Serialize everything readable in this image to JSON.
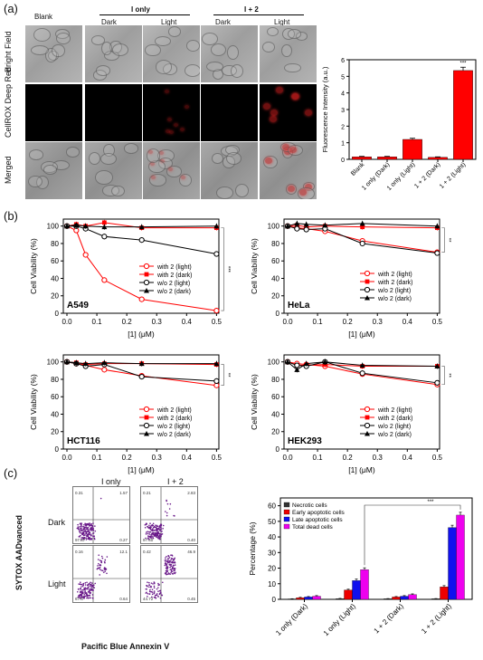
{
  "panel_labels": {
    "a": "(a)",
    "b": "(b)",
    "c": "(c)"
  },
  "panel_a": {
    "columns": {
      "blank": "Blank",
      "i_only": "I only",
      "i_plus_2": "I + 2",
      "dark": "Dark",
      "light": "Light"
    },
    "rows": [
      "Bright Field",
      "CellROX Deep Red",
      "Merged"
    ]
  },
  "panel_c_flow": {
    "columns": [
      "I only",
      "I + 2"
    ],
    "rows": [
      "Dark",
      "Light"
    ],
    "ylabel": "SYTOX AADvanced",
    "xlabel": "Pacific Blue Annexin V",
    "quadrants": [
      [
        "0.31",
        "1.57",
        "97.87",
        "0.27"
      ],
      [
        "0.21",
        "2.83",
        "97.40",
        "0.40"
      ],
      [
        "0.16",
        "12.1",
        "67.5",
        "0.64"
      ],
      [
        "0.42",
        "46.9",
        "44.72",
        "0.45"
      ]
    ]
  },
  "chart_data": [
    {
      "id": "fluorescence",
      "type": "bar",
      "categories": [
        "Blank",
        "1 only (Dark)",
        "1 only (Light)",
        "1 + 2 (Dark)",
        "1 + 2 (Light)"
      ],
      "values": [
        0.15,
        0.15,
        1.2,
        0.12,
        5.35
      ],
      "errors": [
        0.03,
        0.03,
        0.07,
        0.03,
        0.2
      ],
      "ylabel": "Fluorescence Intensity (a.u.)",
      "ylim": [
        0,
        6
      ],
      "yticks": [
        "0",
        "1",
        "2",
        "3",
        "4",
        "5",
        "6"
      ],
      "annotation": "***",
      "color": "#ff0000"
    },
    {
      "id": "A549",
      "type": "line",
      "cell_label": "A549",
      "x": [
        0,
        0.03125,
        0.0625,
        0.125,
        0.25,
        0.5
      ],
      "series": [
        {
          "name": "with 2 (light)",
          "values": [
            100,
            95,
            67,
            38,
            16,
            3
          ],
          "color": "#ff0000",
          "marker": "open-circle"
        },
        {
          "name": "with 2 (dark)",
          "values": [
            100,
            102,
            100,
            104,
            98,
            98
          ],
          "color": "#ff0000",
          "marker": "filled-square"
        },
        {
          "name": "w/o 2 (light)",
          "values": [
            100,
            100,
            97,
            88,
            84,
            68
          ],
          "color": "#000000",
          "marker": "open-circle"
        },
        {
          "name": "w/o 2 (dark)",
          "values": [
            100,
            101,
            100,
            99,
            99,
            100
          ],
          "color": "#000000",
          "marker": "filled-triangle"
        }
      ],
      "xlabel": "[1] (μM)",
      "ylabel": "Cell Viability (%)",
      "xticks": [
        "0.0",
        "0.1",
        "0.2",
        "0.3",
        "0.4",
        "0.5"
      ],
      "yticks": [
        "0",
        "20",
        "40",
        "60",
        "80",
        "100"
      ],
      "annotation": "***"
    },
    {
      "id": "HeLa",
      "type": "line",
      "cell_label": "HeLa",
      "x": [
        0,
        0.03125,
        0.0625,
        0.125,
        0.25,
        0.5
      ],
      "series": [
        {
          "name": "with 2 (light)",
          "values": [
            100,
            98,
            97,
            94,
            83,
            70
          ],
          "color": "#ff0000",
          "marker": "open-circle"
        },
        {
          "name": "with 2 (dark)",
          "values": [
            100,
            101,
            99,
            100,
            99,
            98
          ],
          "color": "#ff0000",
          "marker": "filled-square"
        },
        {
          "name": "w/o 2 (light)",
          "values": [
            100,
            97,
            96,
            97,
            80,
            69
          ],
          "color": "#000000",
          "marker": "open-circle"
        },
        {
          "name": "w/o 2 (dark)",
          "values": [
            100,
            103,
            102,
            101,
            103,
            100
          ],
          "color": "#000000",
          "marker": "filled-triangle"
        }
      ],
      "xlabel": "[1] (μM)",
      "ylabel": "Cell Viability (%)",
      "xticks": [
        "0.0",
        "0.1",
        "0.2",
        "0.3",
        "0.4",
        "0.5"
      ],
      "yticks": [
        "0",
        "20",
        "40",
        "60",
        "80",
        "100"
      ],
      "annotation": "**"
    },
    {
      "id": "HCT116",
      "type": "line",
      "cell_label": "HCT116",
      "x": [
        0,
        0.03125,
        0.0625,
        0.125,
        0.25,
        0.5
      ],
      "series": [
        {
          "name": "with 2 (light)",
          "values": [
            100,
            98,
            96,
            91,
            84,
            73
          ],
          "color": "#ff0000",
          "marker": "open-circle"
        },
        {
          "name": "with 2 (dark)",
          "values": [
            100,
            99,
            97,
            98,
            98,
            97
          ],
          "color": "#ff0000",
          "marker": "filled-square"
        },
        {
          "name": "w/o 2 (light)",
          "values": [
            100,
            98,
            95,
            97,
            83,
            78
          ],
          "color": "#000000",
          "marker": "open-circle"
        },
        {
          "name": "w/o 2 (dark)",
          "values": [
            100,
            99,
            98,
            99,
            98,
            98
          ],
          "color": "#000000",
          "marker": "filled-triangle"
        }
      ],
      "xlabel": "[1] (μM)",
      "ylabel": "Cell Viability (%)",
      "xticks": [
        "0.0",
        "0.1",
        "0.2",
        "0.3",
        "0.4",
        "0.5"
      ],
      "yticks": [
        "0",
        "20",
        "40",
        "60",
        "80",
        "100"
      ],
      "annotation": "**"
    },
    {
      "id": "HEK293",
      "type": "line",
      "cell_label": "HEK293",
      "x": [
        0,
        0.03125,
        0.0625,
        0.125,
        0.25,
        0.5
      ],
      "series": [
        {
          "name": "with 2 (light)",
          "values": [
            100,
            98,
            97,
            95,
            86,
            74
          ],
          "color": "#ff0000",
          "marker": "open-circle"
        },
        {
          "name": "with 2 (dark)",
          "values": [
            100,
            96,
            96,
            97,
            95,
            95
          ],
          "color": "#ff0000",
          "marker": "filled-square"
        },
        {
          "name": "w/o 2 (light)",
          "values": [
            100,
            96,
            95,
            100,
            87,
            76
          ],
          "color": "#000000",
          "marker": "open-circle"
        },
        {
          "name": "w/o 2 (dark)",
          "values": [
            100,
            91,
            98,
            100,
            96,
            95
          ],
          "color": "#000000",
          "marker": "filled-triangle"
        }
      ],
      "xlabel": "[1] (μM)",
      "ylabel": "Cell Viability (%)",
      "xticks": [
        "0.0",
        "0.1",
        "0.2",
        "0.3",
        "0.4",
        "0.5"
      ],
      "yticks": [
        "0",
        "20",
        "40",
        "60",
        "80",
        "100"
      ],
      "annotation": "**"
    },
    {
      "id": "percentage",
      "type": "bar",
      "categories": [
        "1 only (Dark)",
        "1 only (Light)",
        "1 + 2 (Dark)",
        "1 + 2 (Light)"
      ],
      "series": [
        {
          "name": "Necrotic cells",
          "values": [
            0.3,
            0.5,
            0.4,
            0.4
          ],
          "errors": [
            0.1,
            0.1,
            0.1,
            0.1
          ],
          "color": "#333333"
        },
        {
          "name": "Early apoptotic cells",
          "values": [
            1.0,
            6.0,
            1.5,
            8.0
          ],
          "errors": [
            0.3,
            0.5,
            0.3,
            0.8
          ],
          "color": "#ee0000"
        },
        {
          "name": "Late apoptotic cells",
          "values": [
            1.5,
            12.0,
            2.0,
            46.0
          ],
          "errors": [
            0.3,
            1.0,
            0.4,
            1.5
          ],
          "color": "#1010ee"
        },
        {
          "name": "Total dead cells",
          "values": [
            2.0,
            19.0,
            3.0,
            54.0
          ],
          "errors": [
            0.4,
            1.2,
            0.5,
            1.8
          ],
          "color": "#ee00ee"
        }
      ],
      "ylabel": "Percentage (%)",
      "ylim": [
        0,
        65
      ],
      "yticks": [
        "0",
        "10",
        "20",
        "30",
        "40",
        "50",
        "60"
      ],
      "annotation": "***",
      "legend": "top-left"
    }
  ]
}
